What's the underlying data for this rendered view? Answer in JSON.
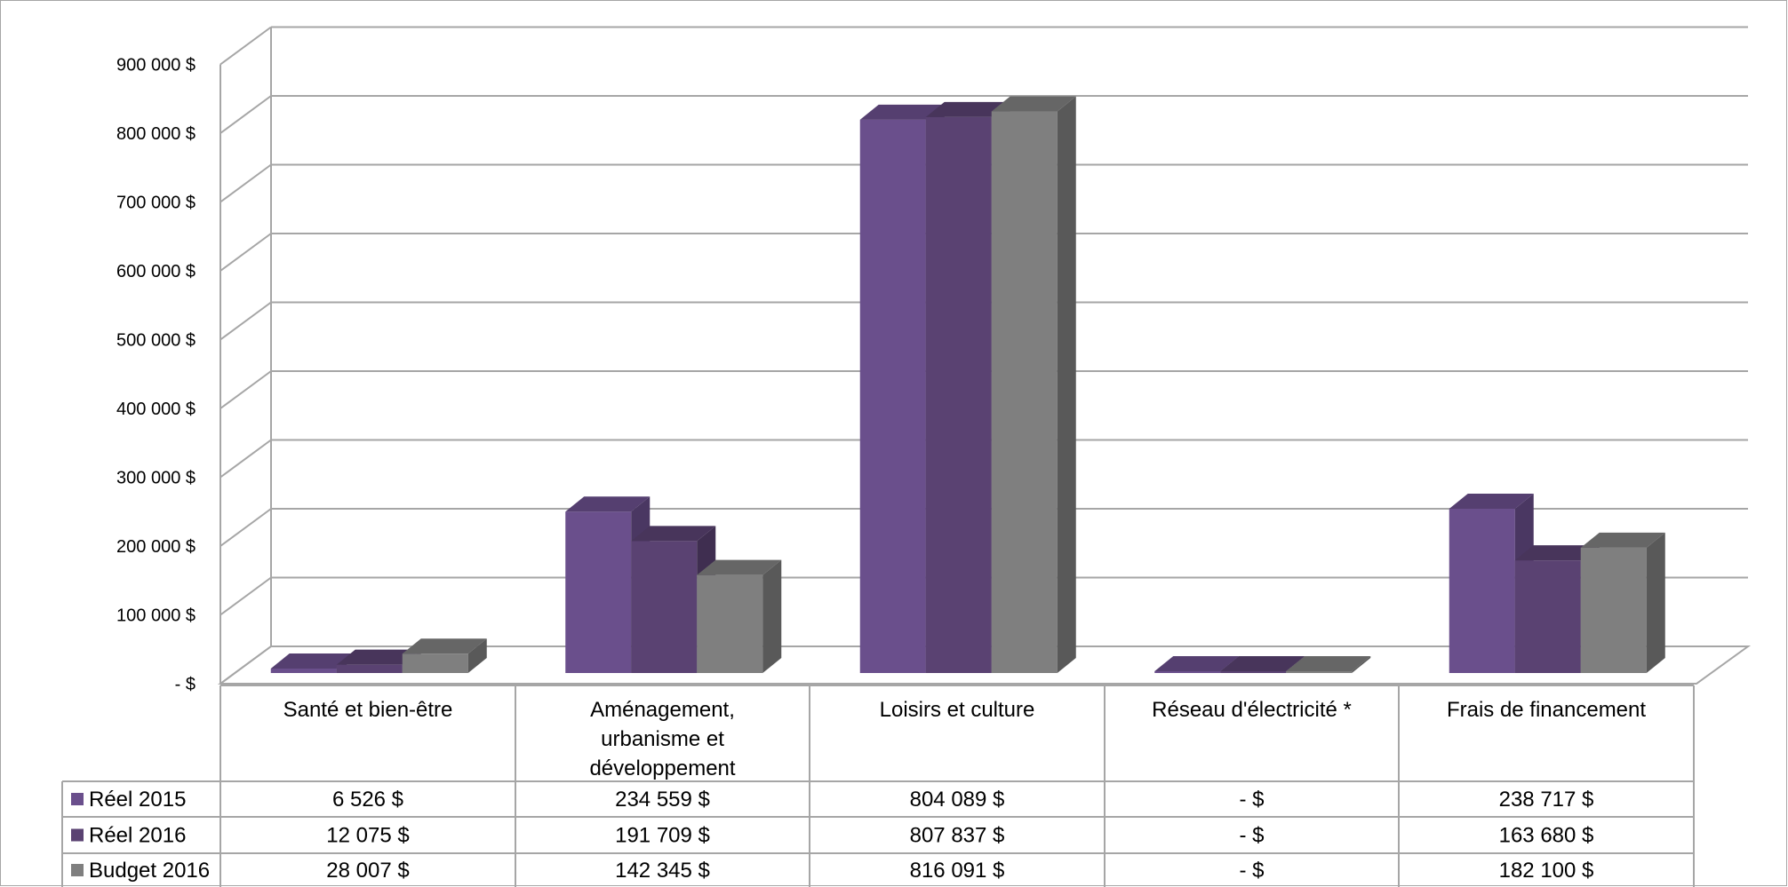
{
  "chart_data": {
    "type": "bar",
    "title": "",
    "xlabel": "",
    "ylabel": "",
    "ylim": [
      0,
      900000
    ],
    "y_ticks": [
      {
        "value": 0,
        "label": "-  $"
      },
      {
        "value": 100000,
        "label": "100 000 $"
      },
      {
        "value": 200000,
        "label": "200 000 $"
      },
      {
        "value": 300000,
        "label": "300 000 $"
      },
      {
        "value": 400000,
        "label": "400 000 $"
      },
      {
        "value": 500000,
        "label": "500 000 $"
      },
      {
        "value": 600000,
        "label": "600 000 $"
      },
      {
        "value": 700000,
        "label": "700 000 $"
      },
      {
        "value": 800000,
        "label": "800 000 $"
      },
      {
        "value": 900000,
        "label": "900 000 $"
      }
    ],
    "grid": true,
    "legend": "data-table",
    "categories": [
      [
        "Santé et bien-être"
      ],
      [
        "Aménagement,",
        "urbanisme et",
        "développement"
      ],
      [
        "Loisirs et culture"
      ],
      [
        "Réseau d'électricité *"
      ],
      [
        "Frais de financement"
      ]
    ],
    "series": [
      {
        "name": "Réel 2015",
        "color": "#6a4f8c",
        "values": [
          6526,
          234559,
          804089,
          0,
          238717
        ],
        "labels": [
          "6 526  $",
          "234 559  $",
          "804 089  $",
          "-   $",
          "238 717  $"
        ]
      },
      {
        "name": "Réel 2016",
        "color": "#5a4272",
        "values": [
          12075,
          191709,
          807837,
          0,
          163680
        ],
        "labels": [
          "12 075  $",
          "191 709  $",
          "807 837  $",
          "-   $",
          "163 680  $"
        ]
      },
      {
        "name": "Budget 2016",
        "color": "#7f7f7f",
        "values": [
          28007,
          142345,
          816091,
          0,
          182100
        ],
        "labels": [
          "28 007  $",
          "142 345  $",
          "816 091  $",
          "-   $",
          "182 100  $"
        ]
      }
    ]
  }
}
